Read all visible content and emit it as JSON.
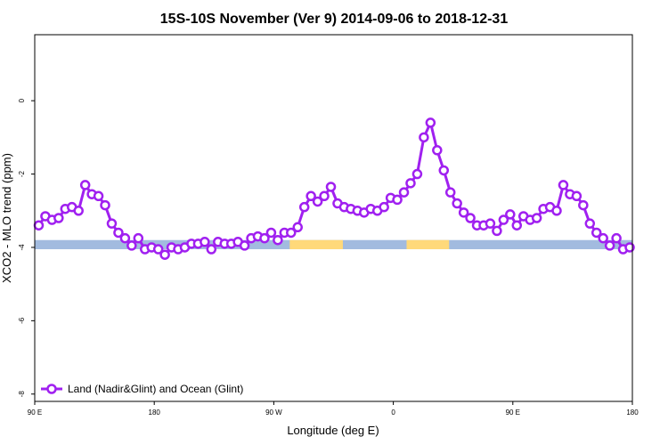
{
  "chart_data": {
    "type": "line",
    "title": "15S-10S November (Ver 9)   2014-09-06 to 2018-12-31",
    "xlabel": "Longitude (deg E)",
    "ylabel": "XCO2 - MLO trend (ppm)",
    "x_ticks": [
      {
        "value": 90,
        "label": "90 E"
      },
      {
        "value": 180,
        "label": "180"
      },
      {
        "value": 270,
        "label": "90 W"
      },
      {
        "value": 360,
        "label": "0"
      },
      {
        "value": 450,
        "label": "90 E"
      },
      {
        "value": 540,
        "label": "180"
      }
    ],
    "y_ticks": [
      {
        "value": 0,
        "label": "0"
      },
      {
        "value": -2,
        "label": "-2"
      },
      {
        "value": -4,
        "label": "-4"
      },
      {
        "value": -6,
        "label": "-6"
      },
      {
        "value": -8,
        "label": "-8"
      }
    ],
    "xlim": [
      90,
      540
    ],
    "ylim": [
      -8.2,
      1.8
    ],
    "grid": false,
    "legend_position": "bottom-left",
    "series": [
      {
        "name": "Land (Nadir&Glint) and Ocean (Glint)",
        "color": "#a020f0",
        "x": [
          93,
          98,
          103,
          108,
          113,
          118,
          123,
          128,
          133,
          138,
          143,
          148,
          153,
          158,
          163,
          168,
          173,
          178,
          183,
          188,
          193,
          198,
          203,
          208,
          213,
          218,
          223,
          228,
          233,
          238,
          243,
          248,
          253,
          258,
          263,
          268,
          273,
          278,
          283,
          288,
          293,
          298,
          303,
          308,
          313,
          318,
          323,
          328,
          333,
          338,
          343,
          348,
          353,
          358,
          363,
          368,
          373,
          378,
          383,
          388,
          393,
          398,
          403,
          408,
          413,
          418,
          423,
          428,
          433,
          438,
          443,
          448,
          453,
          458,
          463,
          468,
          473,
          478,
          483,
          488,
          493,
          498,
          503,
          508,
          513,
          518,
          523,
          528,
          533,
          538
        ],
        "y": [
          -3.4,
          -3.15,
          -3.25,
          -3.2,
          -2.95,
          -2.9,
          -3.0,
          -2.3,
          -2.55,
          -2.6,
          -2.85,
          -3.35,
          -3.6,
          -3.75,
          -3.95,
          -3.75,
          -4.05,
          -4.0,
          -4.05,
          -4.2,
          -4.0,
          -4.05,
          -4.0,
          -3.9,
          -3.9,
          -3.85,
          -4.05,
          -3.85,
          -3.9,
          -3.9,
          -3.85,
          -3.95,
          -3.75,
          -3.7,
          -3.75,
          -3.6,
          -3.8,
          -3.6,
          -3.6,
          -3.45,
          -2.9,
          -2.6,
          -2.75,
          -2.6,
          -2.35,
          -2.8,
          -2.9,
          -2.95,
          -3.0,
          -3.05,
          -2.95,
          -3.0,
          -2.9,
          -2.65,
          -2.7,
          -2.5,
          -2.25,
          -2.0,
          -1.0,
          -0.6,
          -1.35,
          -1.9,
          -2.5,
          -2.8,
          -3.05,
          -3.2,
          -3.4,
          -3.4,
          -3.35,
          -3.55,
          -3.25,
          -3.1,
          -3.4,
          -3.15,
          -3.25,
          -3.2,
          -2.95,
          -2.9,
          -3.0,
          -2.3,
          -2.55,
          -2.6,
          -2.85,
          -3.35,
          -3.6,
          -3.75,
          -3.95,
          -3.75,
          -4.05,
          -4.0
        ]
      }
    ],
    "surface_band": {
      "y_top": -3.8,
      "y_bottom": -4.05,
      "ocean_color": "#a2bbdf",
      "land_color": "#ffd97a",
      "land_ranges": [
        [
          282,
          322
        ],
        [
          370,
          402
        ]
      ]
    }
  }
}
